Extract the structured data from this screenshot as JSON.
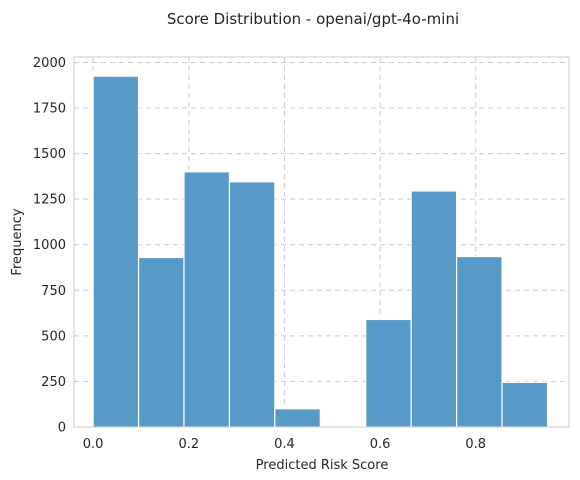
{
  "chart_data": {
    "type": "bar",
    "title": "Score Distribution - openai/gpt-4o-mini",
    "xlabel": "Predicted Risk Score",
    "ylabel": "Frequency",
    "bar_color": "#5799c7",
    "grid": true,
    "x_range": [
      -0.04,
      0.995
    ],
    "y_range": [
      0,
      2030
    ],
    "bin_edges": [
      0.0,
      0.095,
      0.19,
      0.285,
      0.38,
      0.475,
      0.57,
      0.665,
      0.76,
      0.855,
      0.95
    ],
    "values": [
      1925,
      930,
      1400,
      1345,
      100,
      0,
      590,
      1295,
      935,
      245
    ],
    "x_ticks": [
      {
        "value": 0.0,
        "label": "0.0"
      },
      {
        "value": 0.2,
        "label": "0.2"
      },
      {
        "value": 0.4,
        "label": "0.4"
      },
      {
        "value": 0.6,
        "label": "0.6"
      },
      {
        "value": 0.8,
        "label": "0.8"
      }
    ],
    "y_ticks": [
      {
        "value": 0,
        "label": "0"
      },
      {
        "value": 250,
        "label": "250"
      },
      {
        "value": 500,
        "label": "500"
      },
      {
        "value": 750,
        "label": "750"
      },
      {
        "value": 1000,
        "label": "1000"
      },
      {
        "value": 1250,
        "label": "1250"
      },
      {
        "value": 1500,
        "label": "1500"
      },
      {
        "value": 1750,
        "label": "1750"
      },
      {
        "value": 2000,
        "label": "2000"
      }
    ]
  }
}
